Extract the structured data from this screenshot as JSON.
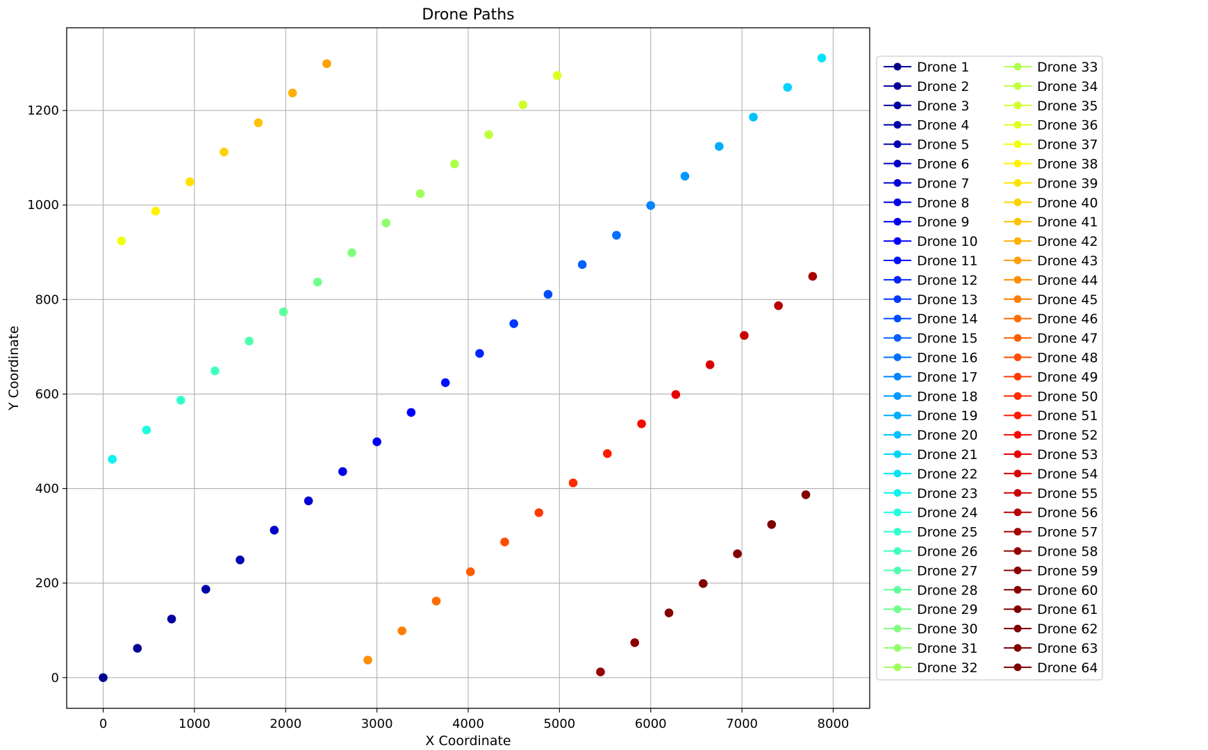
{
  "chart_data": {
    "type": "scatter",
    "title": "Drone Paths",
    "xlabel": "X Coordinate",
    "ylabel": "Y Coordinate",
    "xlim": [
      -400,
      8400
    ],
    "ylim": [
      -65,
      1375
    ],
    "xticks": [
      0,
      1000,
      2000,
      3000,
      4000,
      5000,
      6000,
      7000,
      8000
    ],
    "yticks": [
      0,
      200,
      400,
      600,
      800,
      1000,
      1200
    ],
    "grid": true,
    "legend_placement": "outside-right",
    "colormap": "jet",
    "series": [
      {
        "name": "Drone 1",
        "x": 0,
        "y": 0,
        "color": "#00008f"
      },
      {
        "name": "Drone 2",
        "x": 375,
        "y": 62,
        "color": "#000095"
      },
      {
        "name": "Drone 3",
        "x": 750,
        "y": 124,
        "color": "#00009f"
      },
      {
        "name": "Drone 4",
        "x": 1125,
        "y": 187,
        "color": "#0000a8"
      },
      {
        "name": "Drone 5",
        "x": 1500,
        "y": 249,
        "color": "#0000b3"
      },
      {
        "name": "Drone 6",
        "x": 1875,
        "y": 312,
        "color": "#0000c8"
      },
      {
        "name": "Drone 7",
        "x": 2250,
        "y": 374,
        "color": "#0000d6"
      },
      {
        "name": "Drone 8",
        "x": 2625,
        "y": 436,
        "color": "#0000e4"
      },
      {
        "name": "Drone 9",
        "x": 3000,
        "y": 499,
        "color": "#0000f2"
      },
      {
        "name": "Drone 10",
        "x": 3375,
        "y": 561,
        "color": "#0000ff"
      },
      {
        "name": "Drone 11",
        "x": 3750,
        "y": 624,
        "color": "#0010ff"
      },
      {
        "name": "Drone 12",
        "x": 4125,
        "y": 686,
        "color": "#0024ff"
      },
      {
        "name": "Drone 13",
        "x": 4500,
        "y": 749,
        "color": "#0038ff"
      },
      {
        "name": "Drone 14",
        "x": 4875,
        "y": 811,
        "color": "#004cff"
      },
      {
        "name": "Drone 15",
        "x": 5250,
        "y": 874,
        "color": "#0060ff"
      },
      {
        "name": "Drone 16",
        "x": 5625,
        "y": 936,
        "color": "#0070ff"
      },
      {
        "name": "Drone 17",
        "x": 6000,
        "y": 999,
        "color": "#0084ff"
      },
      {
        "name": "Drone 18",
        "x": 6375,
        "y": 1061,
        "color": "#0098ff"
      },
      {
        "name": "Drone 19",
        "x": 6750,
        "y": 1124,
        "color": "#00acff"
      },
      {
        "name": "Drone 20",
        "x": 7125,
        "y": 1186,
        "color": "#00c0ff"
      },
      {
        "name": "Drone 21",
        "x": 7500,
        "y": 1249,
        "color": "#00d4ff"
      },
      {
        "name": "Drone 22",
        "x": 7875,
        "y": 1311,
        "color": "#00e4f8"
      },
      {
        "name": "Drone 23",
        "x": 100,
        "y": 462,
        "color": "#0cf4eb"
      },
      {
        "name": "Drone 24",
        "x": 475,
        "y": 524,
        "color": "#1ffedd"
      },
      {
        "name": "Drone 25",
        "x": 850,
        "y": 587,
        "color": "#2fffcd"
      },
      {
        "name": "Drone 26",
        "x": 1225,
        "y": 649,
        "color": "#3fffbd"
      },
      {
        "name": "Drone 27",
        "x": 1600,
        "y": 712,
        "color": "#4fffad"
      },
      {
        "name": "Drone 28",
        "x": 1975,
        "y": 774,
        "color": "#5fff9d"
      },
      {
        "name": "Drone 29",
        "x": 2350,
        "y": 837,
        "color": "#6fff8d"
      },
      {
        "name": "Drone 30",
        "x": 2725,
        "y": 899,
        "color": "#7fff7d"
      },
      {
        "name": "Drone 31",
        "x": 3100,
        "y": 962,
        "color": "#8fff6d"
      },
      {
        "name": "Drone 32",
        "x": 3475,
        "y": 1024,
        "color": "#9fff5d"
      },
      {
        "name": "Drone 33",
        "x": 3850,
        "y": 1087,
        "color": "#afff4d"
      },
      {
        "name": "Drone 34",
        "x": 4225,
        "y": 1149,
        "color": "#bfff3d"
      },
      {
        "name": "Drone 35",
        "x": 4600,
        "y": 1212,
        "color": "#cfff2d"
      },
      {
        "name": "Drone 36",
        "x": 4975,
        "y": 1274,
        "color": "#dfff1d"
      },
      {
        "name": "Drone 37",
        "x": 200,
        "y": 924,
        "color": "#efff0d"
      },
      {
        "name": "Drone 38",
        "x": 575,
        "y": 987,
        "color": "#fff200"
      },
      {
        "name": "Drone 39",
        "x": 950,
        "y": 1049,
        "color": "#ffe200"
      },
      {
        "name": "Drone 40",
        "x": 1325,
        "y": 1112,
        "color": "#ffd200"
      },
      {
        "name": "Drone 41",
        "x": 1700,
        "y": 1174,
        "color": "#ffc100"
      },
      {
        "name": "Drone 42",
        "x": 2075,
        "y": 1237,
        "color": "#ffb000"
      },
      {
        "name": "Drone 43",
        "x": 2450,
        "y": 1299,
        "color": "#ffa000"
      },
      {
        "name": "Drone 44",
        "x": 2900,
        "y": 37,
        "color": "#ff8f00"
      },
      {
        "name": "Drone 45",
        "x": 3275,
        "y": 99,
        "color": "#ff7e00"
      },
      {
        "name": "Drone 46",
        "x": 3650,
        "y": 162,
        "color": "#ff6d00"
      },
      {
        "name": "Drone 47",
        "x": 4025,
        "y": 224,
        "color": "#ff5c00"
      },
      {
        "name": "Drone 48",
        "x": 4400,
        "y": 287,
        "color": "#ff4c00"
      },
      {
        "name": "Drone 49",
        "x": 4775,
        "y": 349,
        "color": "#ff3b00"
      },
      {
        "name": "Drone 50",
        "x": 5150,
        "y": 412,
        "color": "#ff2a00"
      },
      {
        "name": "Drone 51",
        "x": 5525,
        "y": 474,
        "color": "#ff1a00"
      },
      {
        "name": "Drone 52",
        "x": 5900,
        "y": 537,
        "color": "#f80900"
      },
      {
        "name": "Drone 53",
        "x": 6275,
        "y": 599,
        "color": "#e80000"
      },
      {
        "name": "Drone 54",
        "x": 6650,
        "y": 662,
        "color": "#d80000"
      },
      {
        "name": "Drone 55",
        "x": 7025,
        "y": 724,
        "color": "#c80000"
      },
      {
        "name": "Drone 56",
        "x": 7400,
        "y": 787,
        "color": "#b70000"
      },
      {
        "name": "Drone 57",
        "x": 7775,
        "y": 849,
        "color": "#a60000"
      },
      {
        "name": "Drone 58",
        "x": 5450,
        "y": 12,
        "color": "#950000"
      },
      {
        "name": "Drone 59",
        "x": 5825,
        "y": 74,
        "color": "#8a0000"
      },
      {
        "name": "Drone 60",
        "x": 6200,
        "y": 137,
        "color": "#840000"
      },
      {
        "name": "Drone 61",
        "x": 6575,
        "y": 199,
        "color": "#800000"
      },
      {
        "name": "Drone 62",
        "x": 6950,
        "y": 262,
        "color": "#800000"
      },
      {
        "name": "Drone 63",
        "x": 7325,
        "y": 324,
        "color": "#800000"
      },
      {
        "name": "Drone 64",
        "x": 7700,
        "y": 387,
        "color": "#800000"
      }
    ]
  }
}
